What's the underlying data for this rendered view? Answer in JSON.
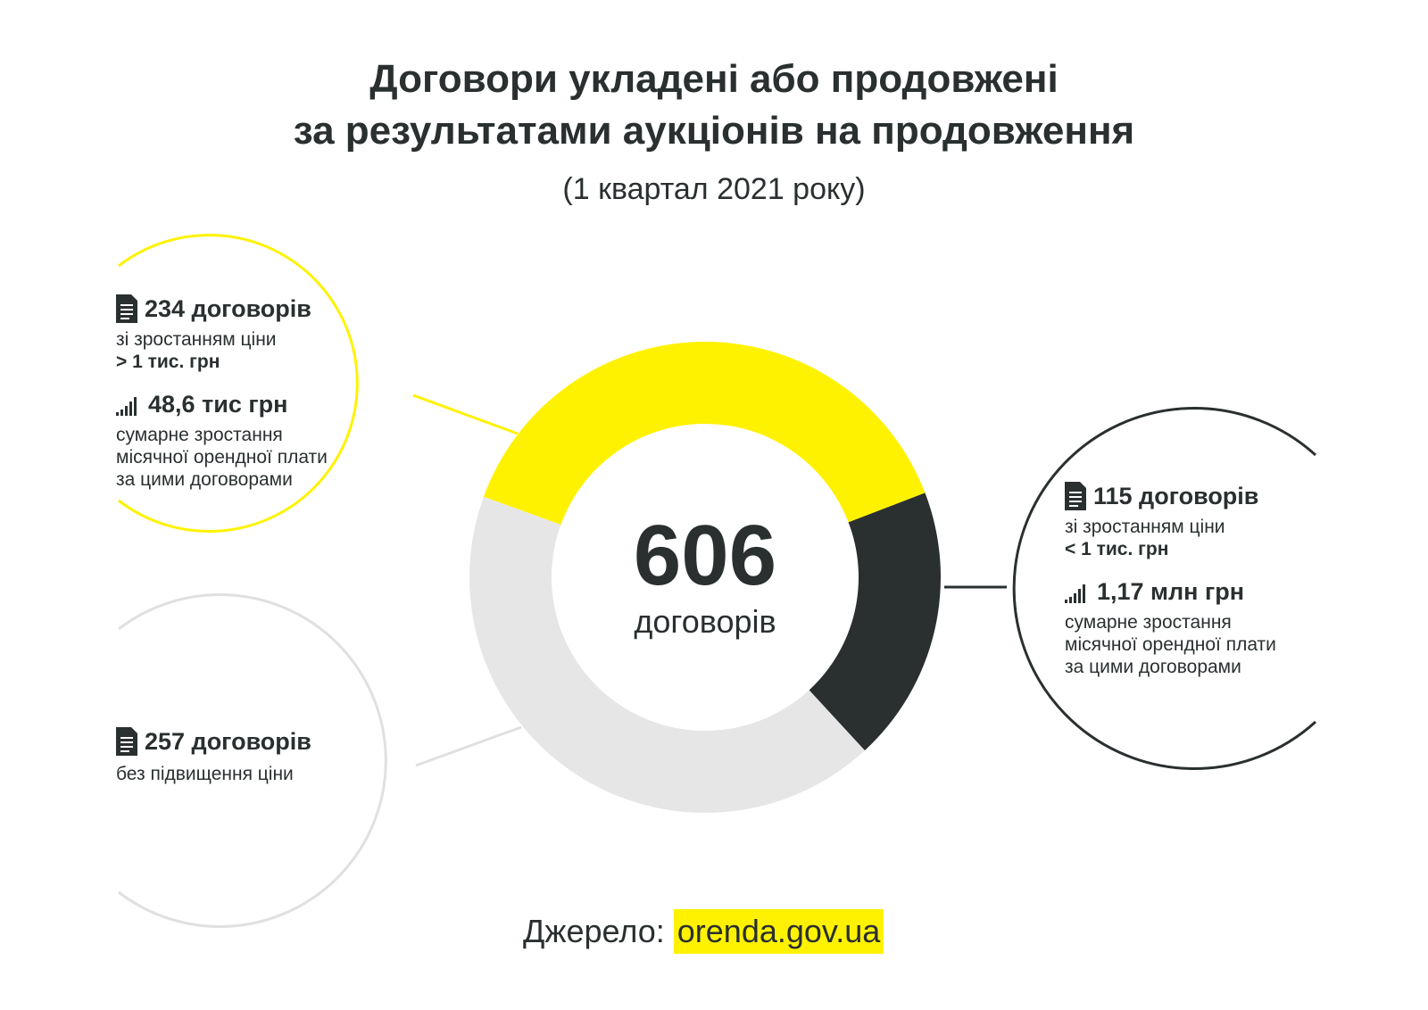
{
  "title": {
    "line1": "Договори укладені або продовжені",
    "line2": "за результатами аукціонів на продовження",
    "period": "(1 квартал 2021 року)"
  },
  "total": {
    "value": "606",
    "label": "договорів"
  },
  "chart_data": {
    "type": "pie",
    "title": "Договори укладені або продовжені за результатами аукціонів на продовження",
    "subtitle": "(1 квартал 2021 року)",
    "total": 606,
    "slices": [
      {
        "label": "зі зростанням ціни > 1 тис. грн",
        "value": 234,
        "color": "#fff200"
      },
      {
        "label": "зі зростанням ціни < 1 тис. грн",
        "value": 115,
        "color": "#2a2f30"
      },
      {
        "label": "без підвищення ціни",
        "value": 257,
        "color": "#e6e6e6"
      }
    ]
  },
  "callouts": {
    "high": {
      "count": "234 договорів",
      "line1": "зі зростанням ціни",
      "line2": "> 1 тис. грн",
      "sum": "48,6 тис грн",
      "sum_desc1": "сумарне зростання",
      "sum_desc2": "місячної орендної плати",
      "sum_desc3": "за цими договорами"
    },
    "low": {
      "count": "115 договорів",
      "line1": "зі зростанням ціни",
      "line2": "< 1 тис. грн",
      "sum": "1,17 млн грн",
      "sum_desc1": "сумарне зростання",
      "sum_desc2": "місячної орендної плати",
      "sum_desc3": "за цими договорами"
    },
    "none": {
      "count": "257 договорів",
      "line1": "без підвищення ціни"
    }
  },
  "icons": {
    "document": "document-icon",
    "growth": "signal-bars-icon"
  },
  "colors": {
    "yellow": "#fff200",
    "dark": "#2a2f30",
    "grey": "#e6e6e6",
    "grey_line": "#e0e0e0"
  },
  "source": {
    "label": "Джерело:",
    "link": "orenda.gov.ua"
  }
}
